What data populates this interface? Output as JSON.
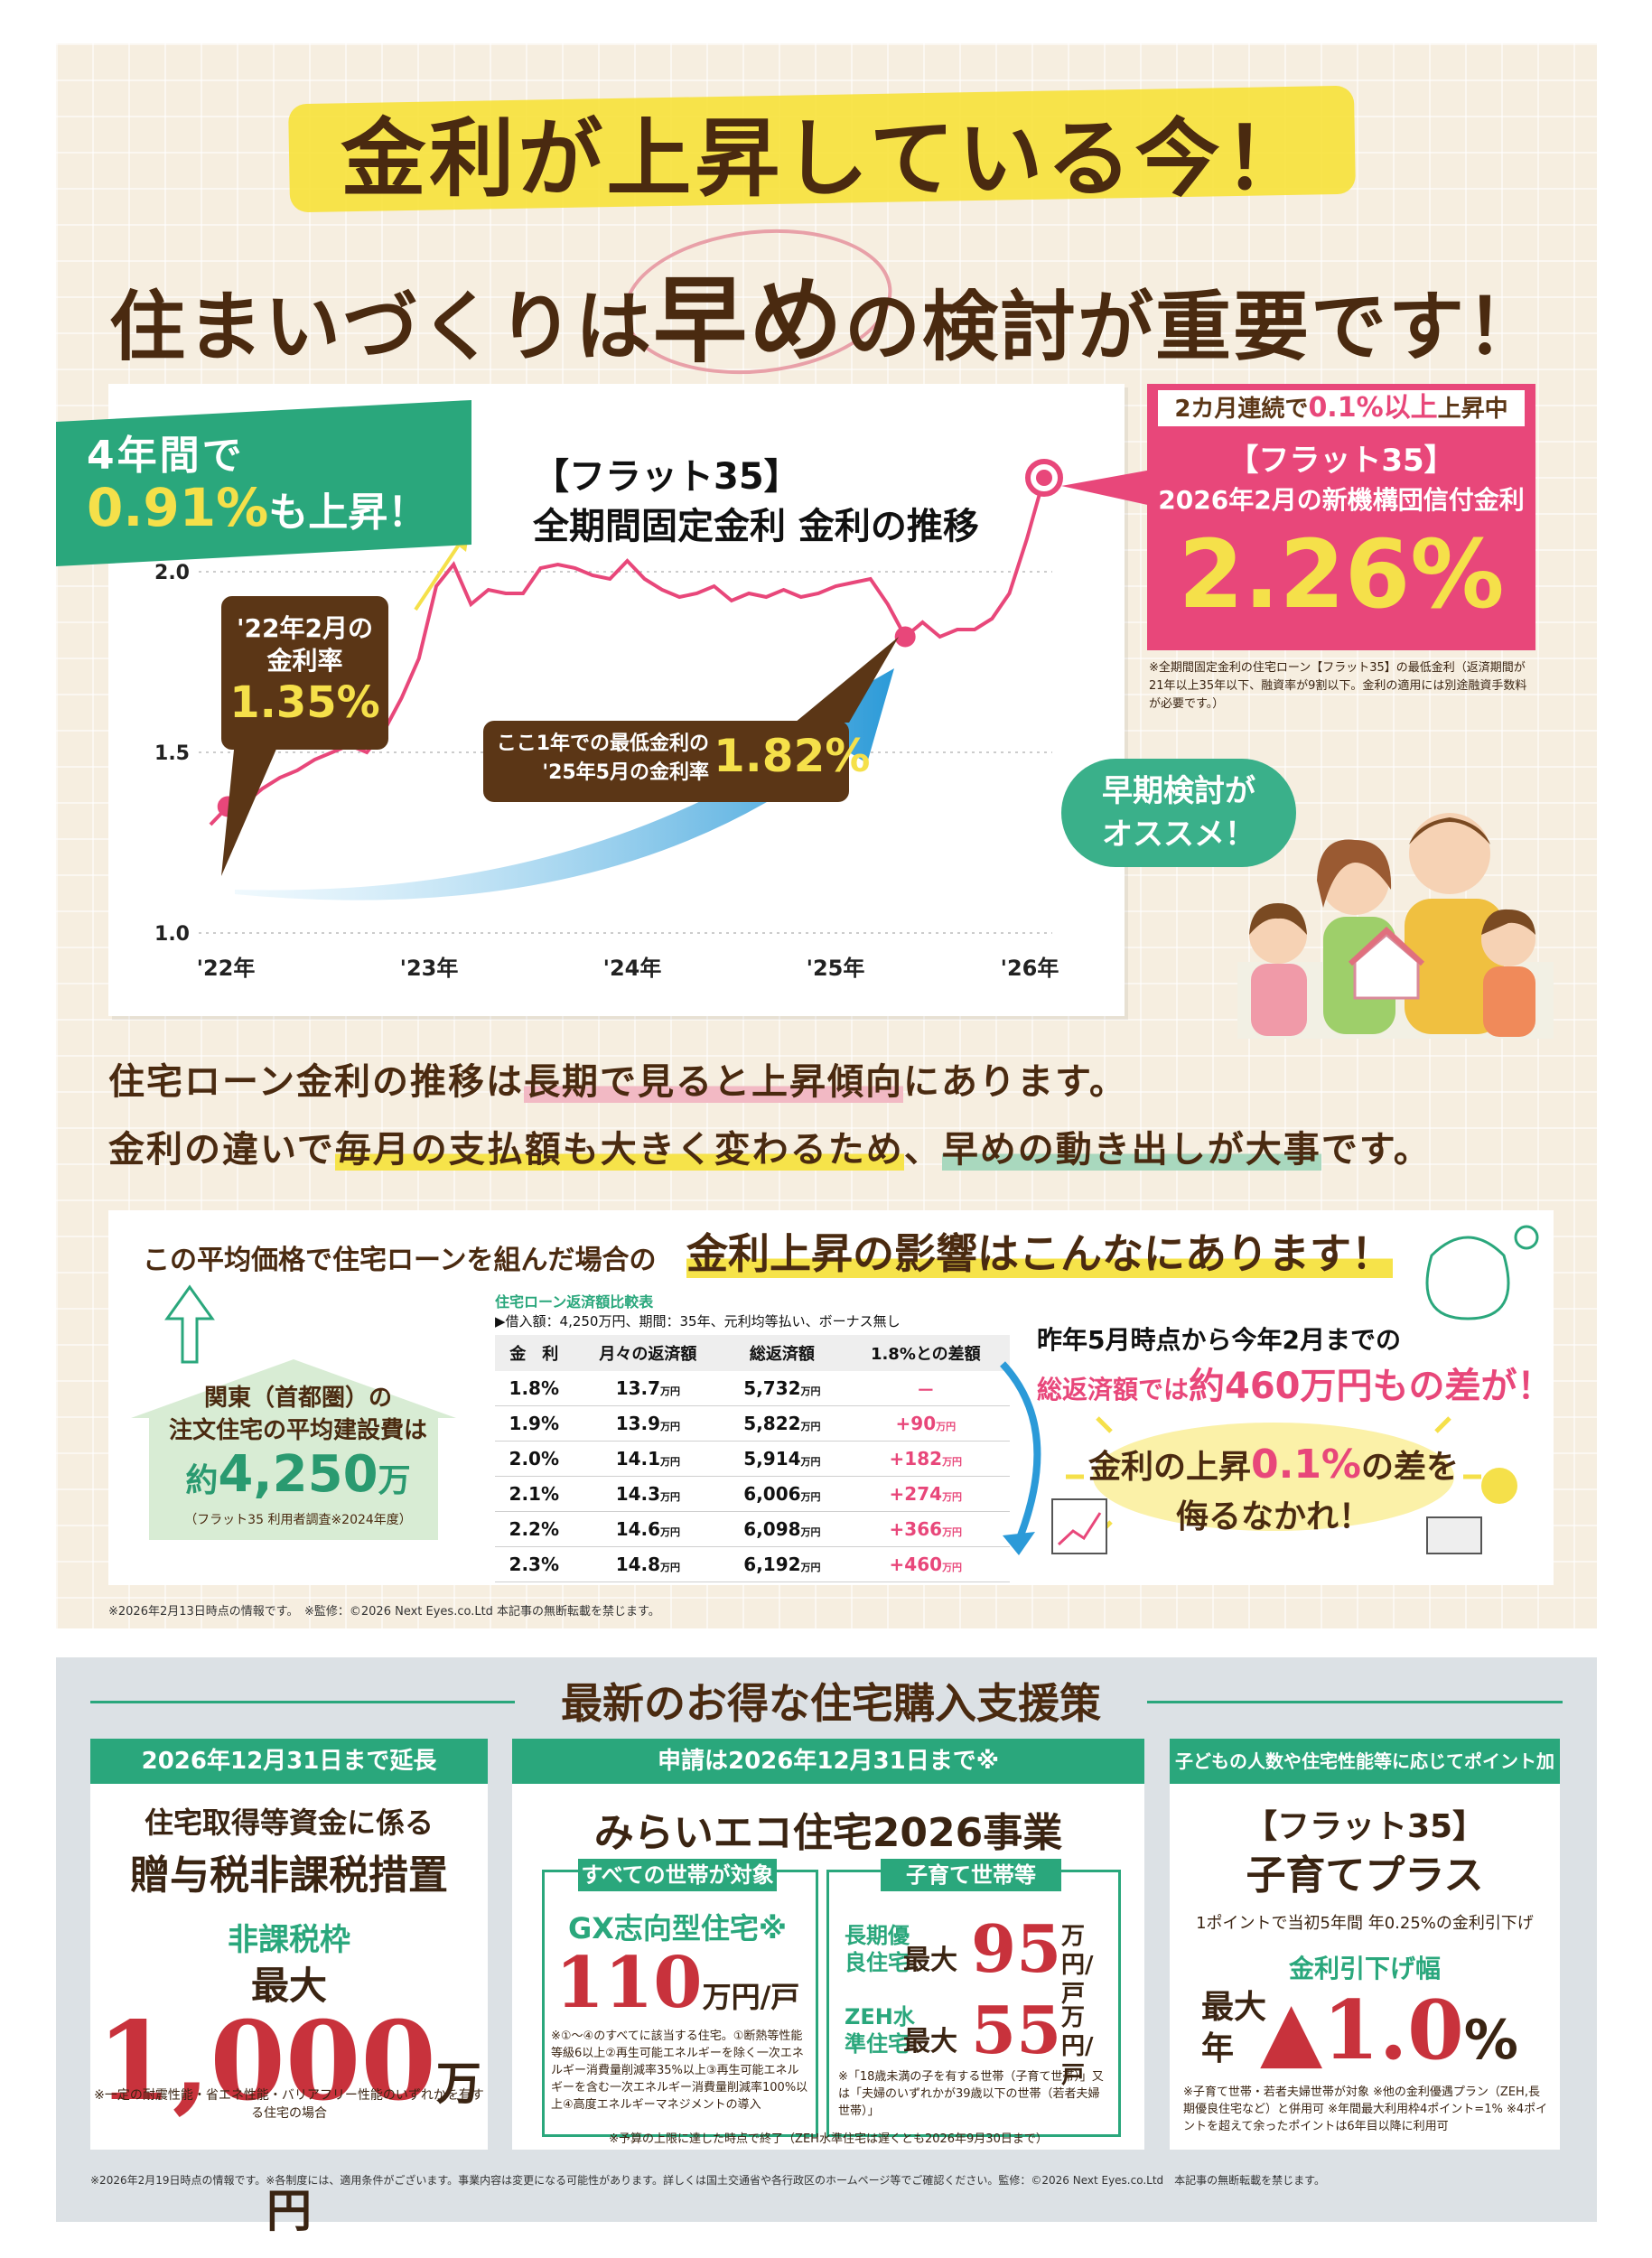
{
  "headline": {
    "line1": "金利が上昇している今！",
    "line2_pre": "住まいづくりは",
    "line2_emph": "早め",
    "line2_post": "の検討が重要です！"
  },
  "badge_left": {
    "line1": "4年間で",
    "value": "0.91%",
    "suffix": "も上昇！"
  },
  "chart_title": {
    "line1": "【フラット35】",
    "line2": "全期間固定金利 金利の推移"
  },
  "chart_data": {
    "type": "line",
    "x_tick_labels": [
      "'22年",
      "'23年",
      "'24年",
      "'25年",
      "'26年"
    ],
    "y_tick_labels": [
      "1.0",
      "1.5",
      "2.0"
    ],
    "ylim": [
      1.0,
      2.0
    ],
    "grid": "horizontal dotted",
    "series": [
      {
        "x": [
          0,
          1,
          2,
          3,
          4,
          5,
          6,
          7,
          8,
          9,
          10,
          11,
          12,
          13,
          14,
          15,
          16,
          17,
          18,
          19,
          20,
          21,
          22,
          23,
          24,
          25,
          26,
          27,
          28,
          29,
          30,
          31,
          32,
          33,
          34,
          35,
          36,
          37,
          38,
          39,
          40,
          41,
          42,
          43,
          44,
          45,
          46,
          47,
          48
        ],
        "y": [
          1.3,
          1.35,
          1.36,
          1.4,
          1.43,
          1.45,
          1.48,
          1.5,
          1.52,
          1.5,
          1.56,
          1.65,
          1.76,
          1.96,
          2.02,
          1.91,
          1.95,
          1.94,
          1.94,
          2.01,
          2.02,
          2.01,
          1.99,
          1.98,
          2.03,
          1.98,
          1.95,
          1.93,
          1.94,
          1.96,
          1.92,
          1.94,
          1.93,
          1.95,
          1.93,
          1.94,
          1.96,
          1.97,
          1.98,
          1.91,
          1.82,
          1.86,
          1.82,
          1.84,
          1.84,
          1.87,
          1.94,
          2.09,
          2.26
        ]
      }
    ],
    "highlighted_points": [
      {
        "label": "'22年2月の金利率",
        "value": "1.35%"
      },
      {
        "label": "ここ1年での最低金利の'25年5月の金利率",
        "value": "1.82%"
      },
      {
        "label": "2026年2月の新機構団信付金利",
        "value": "2.26%"
      }
    ]
  },
  "callout_1": {
    "line1": "'22年2月の",
    "line2": "金利率",
    "value": "1.35%"
  },
  "callout_2": {
    "line1": "ここ1年での最低金利の",
    "line2": "'25年5月の金利率",
    "value": "1.82%"
  },
  "pink_panel": {
    "header_pre": "2カ月連続で",
    "header_emph": "0.1%以上",
    "header_post": "上昇中",
    "title": "【フラット35】",
    "subtitle": "2026年2月の新機構団信付金利",
    "value": "2.26%",
    "note": "※全期間固定金利の住宅ローン【フラット35】の最低金利（返済期間が21年以上35年以下、融資率が9割以下。金利の適用には別途融資手数料が必要です。）"
  },
  "green_bubble": {
    "line1": "早期検討が",
    "line2": "オススメ！"
  },
  "message": {
    "l1_a": "住宅ローン金利の推移は",
    "l1_b": "長期で見ると上昇傾向",
    "l1_c": "にあります。",
    "l2_a": "金利の違いで",
    "l2_b": "毎月の支払額も大きく変わるため",
    "l2_c": "、",
    "l2_d": "早めの動き出しが大事",
    "l2_e": "です。"
  },
  "impact": {
    "lead": "この平均価格で住宅ローンを組んだ場合の",
    "title": "金利上昇の影響はこんなにあります！"
  },
  "house": {
    "line1": "関東（首都圏）の",
    "line2": "注文住宅の平均建設費は",
    "prefix": "約",
    "value": "4,250",
    "unit": "万",
    "note": "（フラット35 利用者調査※2024年度）"
  },
  "table": {
    "title": "住宅ローン返済額比較表",
    "cond": "▶借入額：4,250万円、期間：35年、元利均等払い、ボーナス無し",
    "headers": [
      "金　利",
      "月々の返済額",
      "総返済額",
      "1.8%との差額"
    ],
    "rows": [
      {
        "rate": "1.8%",
        "monthly": "13.7",
        "total": "5,732",
        "diff": "－",
        "diff_unit": ""
      },
      {
        "rate": "1.9%",
        "monthly": "13.9",
        "total": "5,822",
        "diff": "+90",
        "diff_unit": "万円"
      },
      {
        "rate": "2.0%",
        "monthly": "14.1",
        "total": "5,914",
        "diff": "+182",
        "diff_unit": "万円"
      },
      {
        "rate": "2.1%",
        "monthly": "14.3",
        "total": "6,006",
        "diff": "+274",
        "diff_unit": "万円"
      },
      {
        "rate": "2.2%",
        "monthly": "14.6",
        "total": "6,098",
        "diff": "+366",
        "diff_unit": "万円"
      },
      {
        "rate": "2.3%",
        "monthly": "14.8",
        "total": "6,192",
        "diff": "+460",
        "diff_unit": "万円"
      }
    ],
    "unit": "万円"
  },
  "compare": {
    "line1": "昨年5月時点から今年2月までの",
    "line2_pre": "総返済額では",
    "line2_emph": "約460万円もの差が！"
  },
  "burst": {
    "l1_pre": "金利の上昇",
    "l1_emph": "0.1%",
    "l1_post": "の差を",
    "line2": "侮るなかれ！"
  },
  "note_top": "※2026年2月13日時点の情報です。　※監修：©2026 Next Eyes.co.Ltd 本記事の無断転載を禁じます。",
  "support": {
    "title": "最新のお得な住宅購入支援策",
    "card1": {
      "header": "2026年12月31日まで延長",
      "line1": "住宅取得等資金に係る",
      "line2": "贈与税非課税措置",
      "label": "非課税枠",
      "max": "最大",
      "value": "1,000",
      "unit": "万円",
      "note": "※一定の耐震性能・省エネ性能・バリアフリー性能のいずれかを有する住宅の場合"
    },
    "card2": {
      "header": "申請は2026年12月31日まで※",
      "title": "みらいエコ住宅2026事業",
      "sub1": {
        "header": "すべての世帯が対象",
        "label": "GX志向型住宅※",
        "value": "110",
        "unit": "万円/戸",
        "note": "※①〜④のすべてに該当する住宅。①断熱等性能等級6以上②再生可能エネルギーを除く一次エネルギー消費量削減率35%以上③再生可能エネルギーを含む一次エネルギー消費量削減率100%以上④高度エネルギーマネジメントの導入"
      },
      "sub2": {
        "header": "子育て世帯等",
        "r1_label": "長期優良住宅",
        "r1_max": "最大",
        "r1_value": "95",
        "r1_unit": "万円/戸",
        "r2_label": "ZEH水準住宅",
        "r2_max": "最大",
        "r2_value": "55",
        "r2_unit": "万円/戸",
        "note": "※「18歳未満の子を有する世帯（子育て世帯）」又は「夫婦のいずれかが39歳以下の世帯（若者夫婦世帯）」"
      },
      "note": "※予算の上限に達した時点で終了（ZEH水準住宅は遅くとも2026年9月30日まで）"
    },
    "card3": {
      "header": "子どもの人数や住宅性能等に応じてポイント加算",
      "line1": "【フラット35】",
      "line2": "子育てプラス",
      "desc": "1ポイントで当初5年間 年0.25%の金利引下げ",
      "label": "金利引下げ幅",
      "max": "最大",
      "year": "年",
      "value": "▲1.0",
      "unit": "%",
      "note": "※子育て世帯・若者夫婦世帯が対象 ※他の金利優遇プラン（ZEH,長期優良住宅など）と併用可 ※年間最大利用枠4ポイント=1% ※4ポイントを超えて余ったポイントは6年目以降に利用可"
    }
  },
  "note_bottom": "※2026年2月19日時点の情報です。※各制度には、適用条件がございます。事業内容は変更になる可能性があります。詳しくは国土交通省や各行政区のホームページ等でご確認ください。監修：©2026 Next Eyes.co.Ltd　本記事の無断転載を禁じます。",
  "colors": {
    "green": "#2aa77c",
    "pink": "#e8477a",
    "brown": "#5b3616",
    "yellow": "#f5e04a",
    "red": "#c8323c"
  }
}
